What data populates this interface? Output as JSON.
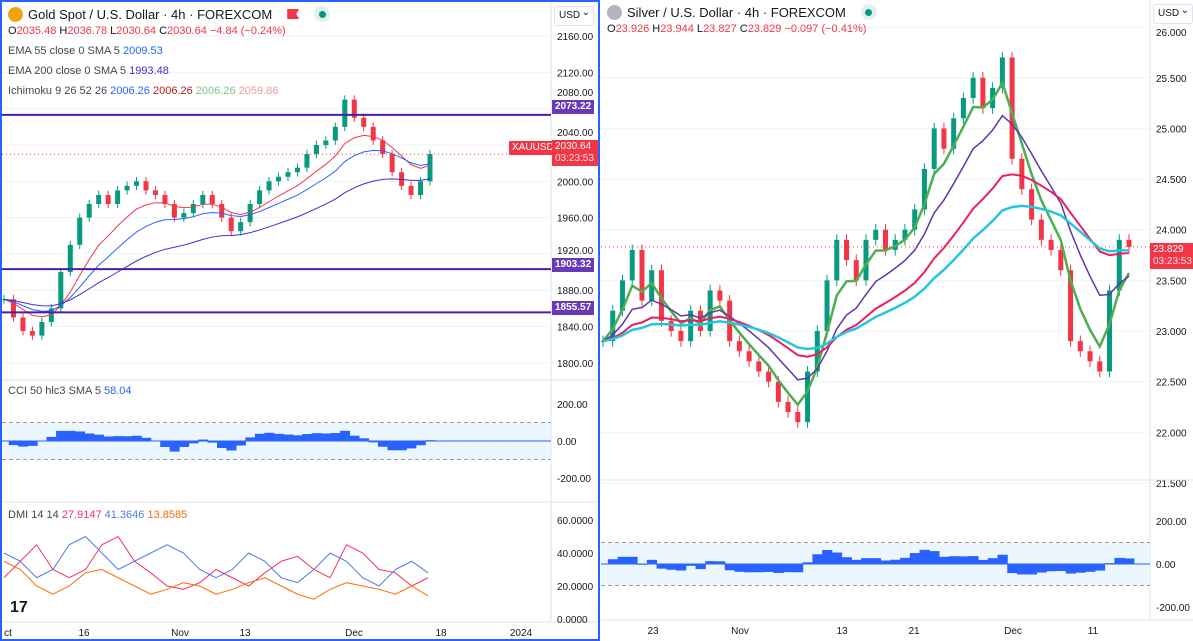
{
  "left": {
    "title": "Gold Spot / U.S. Dollar · 4h · FOREXCOM",
    "ohlc": {
      "o": "2035.48",
      "h": "2036.78",
      "l": "2030.64",
      "c": "2030.64",
      "chg": "−4.84 (−0.24%)"
    },
    "indicators": [
      {
        "label": "EMA 55 close 0 SMA 5",
        "values": [
          "2009.53"
        ],
        "colors": [
          "#2962ff"
        ]
      },
      {
        "label": "EMA 200 close 0 SMA 5",
        "values": [
          "1993.48"
        ],
        "colors": [
          "#3f2bd6"
        ]
      },
      {
        "label": "Ichimoku 9 26 52 26",
        "values": [
          "2006.26",
          "2006.26",
          "2006.26",
          "2059.86"
        ],
        "colors": [
          "#2962ff",
          "#b71c1c",
          "#81c784",
          "#ef9a9a"
        ]
      }
    ],
    "currency": "USD",
    "symbol_tag": "XAUUSD",
    "last_price": "2030.64",
    "countdown": "03:23:53",
    "levels": [
      "2073.22",
      "1903.32",
      "1855.57"
    ],
    "cci_legend": {
      "label": "CCI 50 hlc3 SMA 5",
      "value": "58.04"
    },
    "dmi_legend": {
      "label": "DMI 14 14",
      "values": [
        "27.9147",
        "41.3646",
        "13.8585"
      ],
      "colors": [
        "#f7325f",
        "#4c7be8",
        "#ff6d00"
      ]
    },
    "price_ticks": [
      "2160.00",
      "2120.00",
      "2080.00",
      "2040.00",
      "2000.00",
      "1960.00",
      "1920.00",
      "1880.00",
      "1840.00",
      "1800.00"
    ],
    "cci_ticks": [
      "200.00",
      "0.00",
      "-200.00"
    ],
    "dmi_ticks": [
      "60.0000",
      "40.0000",
      "20.0000",
      "0.0000"
    ],
    "time_ticks": [
      "ct",
      "16",
      "Nov",
      "13",
      "Dec",
      "18",
      "2024"
    ]
  },
  "right": {
    "title": "Silver / U.S. Dollar · 4h · FOREXCOM",
    "ohlc": {
      "o": "23.926",
      "h": "23.944",
      "l": "23.827",
      "c": "23.829",
      "chg": "−0.097 (−0.41%)"
    },
    "currency": "USD",
    "last_price": "23.829",
    "countdown": "03:23:53",
    "price_ticks": [
      "26.000",
      "25.500",
      "25.000",
      "24.500",
      "24.000",
      "23.500",
      "23.000",
      "22.500",
      "22.000",
      "21.500"
    ],
    "cci_ticks": [
      "200.00",
      "0.00",
      "-200.00"
    ],
    "time_ticks": [
      "23",
      "Nov",
      "13",
      "21",
      "Dec",
      "11"
    ]
  },
  "chart_data": [
    {
      "type": "candlestick",
      "name": "Gold Spot / U.S. Dollar",
      "ylim": [
        1780,
        2170
      ],
      "closes": [
        1870,
        1850,
        1835,
        1830,
        1845,
        1860,
        1900,
        1930,
        1960,
        1975,
        1985,
        1975,
        1990,
        1995,
        2000,
        1990,
        1985,
        1975,
        1960,
        1965,
        1975,
        1985,
        1975,
        1960,
        1945,
        1955,
        1975,
        1990,
        2000,
        2005,
        2010,
        2015,
        2030,
        2040,
        2045,
        2060,
        2090,
        2070,
        2060,
        2045,
        2030,
        2010,
        1995,
        1985,
        2000,
        2030
      ],
      "dmi": {
        "plus": [
          25,
          35,
          45,
          30,
          25,
          30,
          45,
          50,
          35,
          28,
          20,
          18,
          22,
          30,
          25,
          20,
          28,
          35,
          38,
          30,
          25,
          45,
          40,
          30,
          28,
          20,
          25
        ],
        "minus": [
          40,
          35,
          25,
          30,
          45,
          50,
          40,
          30,
          35,
          40,
          45,
          40,
          30,
          25,
          30,
          40,
          35,
          25,
          22,
          30,
          40,
          35,
          25,
          20,
          30,
          35,
          28
        ],
        "adx": [
          35,
          30,
          20,
          15,
          20,
          28,
          30,
          25,
          20,
          15,
          18,
          22,
          20,
          15,
          18,
          22,
          25,
          20,
          15,
          12,
          18,
          22,
          20,
          18,
          15,
          20,
          14
        ]
      }
    },
    {
      "type": "candlestick",
      "name": "Silver / U.S. Dollar",
      "ylim": [
        21.45,
        26.1
      ],
      "closes": [
        22.9,
        23.2,
        23.5,
        23.8,
        23.3,
        23.6,
        23.1,
        23.0,
        22.9,
        23.2,
        23.0,
        23.4,
        23.3,
        22.9,
        22.8,
        22.7,
        22.6,
        22.5,
        22.3,
        22.2,
        22.1,
        22.6,
        23.0,
        23.5,
        23.9,
        23.7,
        23.5,
        23.9,
        24.0,
        23.8,
        23.9,
        24.0,
        24.2,
        24.6,
        25.0,
        24.8,
        25.1,
        25.3,
        25.5,
        25.2,
        25.4,
        25.7,
        24.7,
        24.4,
        24.1,
        23.9,
        23.8,
        23.6,
        22.9,
        22.8,
        22.7,
        22.6,
        23.4,
        23.9,
        23.83
      ]
    }
  ]
}
